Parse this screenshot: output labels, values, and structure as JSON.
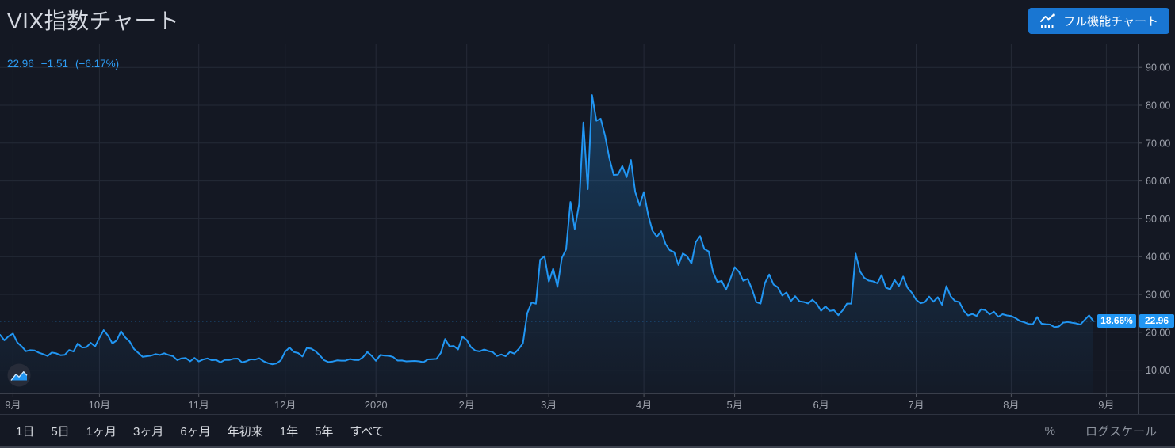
{
  "header": {
    "title": "VIX指数チャート",
    "cta_label": "フル機能チャート"
  },
  "quote": {
    "last": "22.96",
    "change": "−1.51",
    "change_pct": "(−6.17%)"
  },
  "axis_badges": {
    "percent": "18.66%",
    "price": "22.96"
  },
  "toolbar": {
    "ranges": [
      "1日",
      "5日",
      "1ヶ月",
      "3ヶ月",
      "6ヶ月",
      "年初来",
      "1年",
      "5年",
      "すべて"
    ],
    "percent_label": "%",
    "log_label": "ログスケール"
  },
  "icons": {
    "cta_icon": "line-chart-icon",
    "series_style_icon": "area-chart-icon"
  },
  "colors": {
    "background": "#141823",
    "accent_blue": "#2196f3",
    "button_blue": "#1976d2",
    "grid": "#252a37",
    "axis_line": "#3a3f4b",
    "axis_text": "#9da1ab",
    "title_text": "#d4d8e0",
    "badge_bg": "#2196f3"
  },
  "chart_data": {
    "type": "area",
    "title": "VIX指数チャート",
    "legend": "none",
    "grid": true,
    "ylabel": "",
    "xlabel": "",
    "y_ticks": [
      90,
      80,
      70,
      60,
      50,
      40,
      30,
      20,
      10
    ],
    "y_tick_labels": [
      "90.00",
      "80.00",
      "70.00",
      "60.00",
      "50.00",
      "40.00",
      "30.00",
      "20.00",
      "10.00"
    ],
    "ylim_visible": [
      4,
      94
    ],
    "x_tick_labels": [
      "9月",
      "10月",
      "11月",
      "12月",
      "2020",
      "2月",
      "3月",
      "4月",
      "5月",
      "6月",
      "7月",
      "8月",
      "9月"
    ],
    "x_tick_day_index": [
      3,
      23,
      46,
      66,
      87,
      108,
      127,
      149,
      170,
      190,
      212,
      234,
      256
    ],
    "points_are": "consecutive daily closes, Sep 2019 – Sep 2020 window shown on axis",
    "current_value": 22.96,
    "current_change": -1.51,
    "current_change_pct": -6.17,
    "percent_scale_label": "18.66%",
    "peak_value": 82.69,
    "values": [
      19.35,
      17.88,
      18.98,
      19.66,
      17.33,
      16.27,
      15.0,
      15.27,
      15.2,
      14.61,
      14.22,
      13.74,
      14.67,
      14.44,
      13.95,
      14.05,
      15.32,
      14.91,
      17.05,
      15.96,
      16.07,
      17.22,
      16.24,
      18.56,
      20.56,
      19.12,
      17.04,
      17.86,
      20.28,
      18.64,
      17.57,
      15.58,
      14.57,
      13.54,
      13.68,
      13.85,
      14.25,
      14.02,
      14.46,
      14.01,
      13.71,
      12.65,
      13.11,
      13.2,
      12.33,
      13.22,
      12.3,
      12.83,
      13.1,
      12.62,
      12.73,
      12.07,
      12.69,
      12.68,
      13.0,
      13.05,
      12.05,
      12.34,
      12.86,
      12.78,
      13.13,
      12.34,
      11.87,
      11.54,
      11.75,
      12.62,
      14.91,
      15.96,
      14.8,
      14.52,
      13.62,
      15.86,
      15.68,
      14.99,
      13.94,
      12.63,
      12.14,
      12.29,
      12.58,
      12.5,
      12.51,
      12.96,
      12.67,
      12.65,
      13.43,
      14.82,
      13.78,
      12.47,
      14.02,
      13.85,
      13.79,
      13.45,
      12.54,
      12.56,
      12.32,
      12.39,
      12.42,
      12.32,
      12.1,
      12.85,
      12.91,
      12.98,
      14.56,
      18.23,
      16.28,
      16.39,
      15.49,
      18.84,
      17.97,
      16.05,
      15.15,
      14.96,
      15.47,
      15.04,
      14.8,
      13.74,
      14.15,
      13.68,
      14.83,
      14.38,
      15.56,
      17.08,
      25.03,
      27.85,
      27.56,
      39.16,
      40.11,
      33.42,
      36.82,
      31.99,
      39.62,
      41.94,
      54.46,
      47.3,
      53.9,
      75.47,
      57.83,
      82.69,
      75.91,
      76.45,
      72.0,
      66.04,
      61.59,
      61.67,
      63.95,
      61.0,
      65.54,
      57.08,
      53.54,
      57.06,
      50.91,
      46.8,
      45.24,
      46.7,
      43.35,
      41.67,
      41.17,
      37.76,
      40.84,
      40.11,
      38.15,
      43.83,
      45.41,
      41.98,
      41.38,
      35.93,
      33.29,
      33.57,
      31.23,
      34.15,
      37.19,
      35.97,
      33.61,
      34.12,
      31.44,
      27.98,
      27.57,
      33.04,
      35.28,
      32.61,
      31.89,
      29.72,
      30.53,
      28.23,
      29.53,
      28.16,
      28.01,
      27.62,
      28.59,
      27.51,
      25.66,
      26.84,
      25.66,
      25.81,
      24.52,
      25.81,
      27.57,
      27.57,
      40.79,
      36.09,
      34.4,
      33.67,
      33.47,
      32.94,
      35.12,
      31.77,
      31.37,
      33.84,
      32.22,
      34.73,
      31.78,
      30.43,
      28.62,
      27.68,
      27.94,
      29.43,
      28.08,
      29.26,
      27.29,
      32.19,
      29.52,
      28.24,
      28.0,
      25.68,
      24.46,
      24.84,
      24.32,
      26.08,
      25.84,
      24.74,
      25.44,
      24.1,
      24.76,
      24.46,
      24.28,
      23.76,
      22.99,
      22.65,
      22.21,
      22.13,
      24.03,
      22.28,
      22.13,
      22.05,
      21.35,
      21.51,
      22.54,
      22.72,
      22.54,
      22.37,
      22.03,
      23.27,
      24.47,
      22.96
    ]
  }
}
